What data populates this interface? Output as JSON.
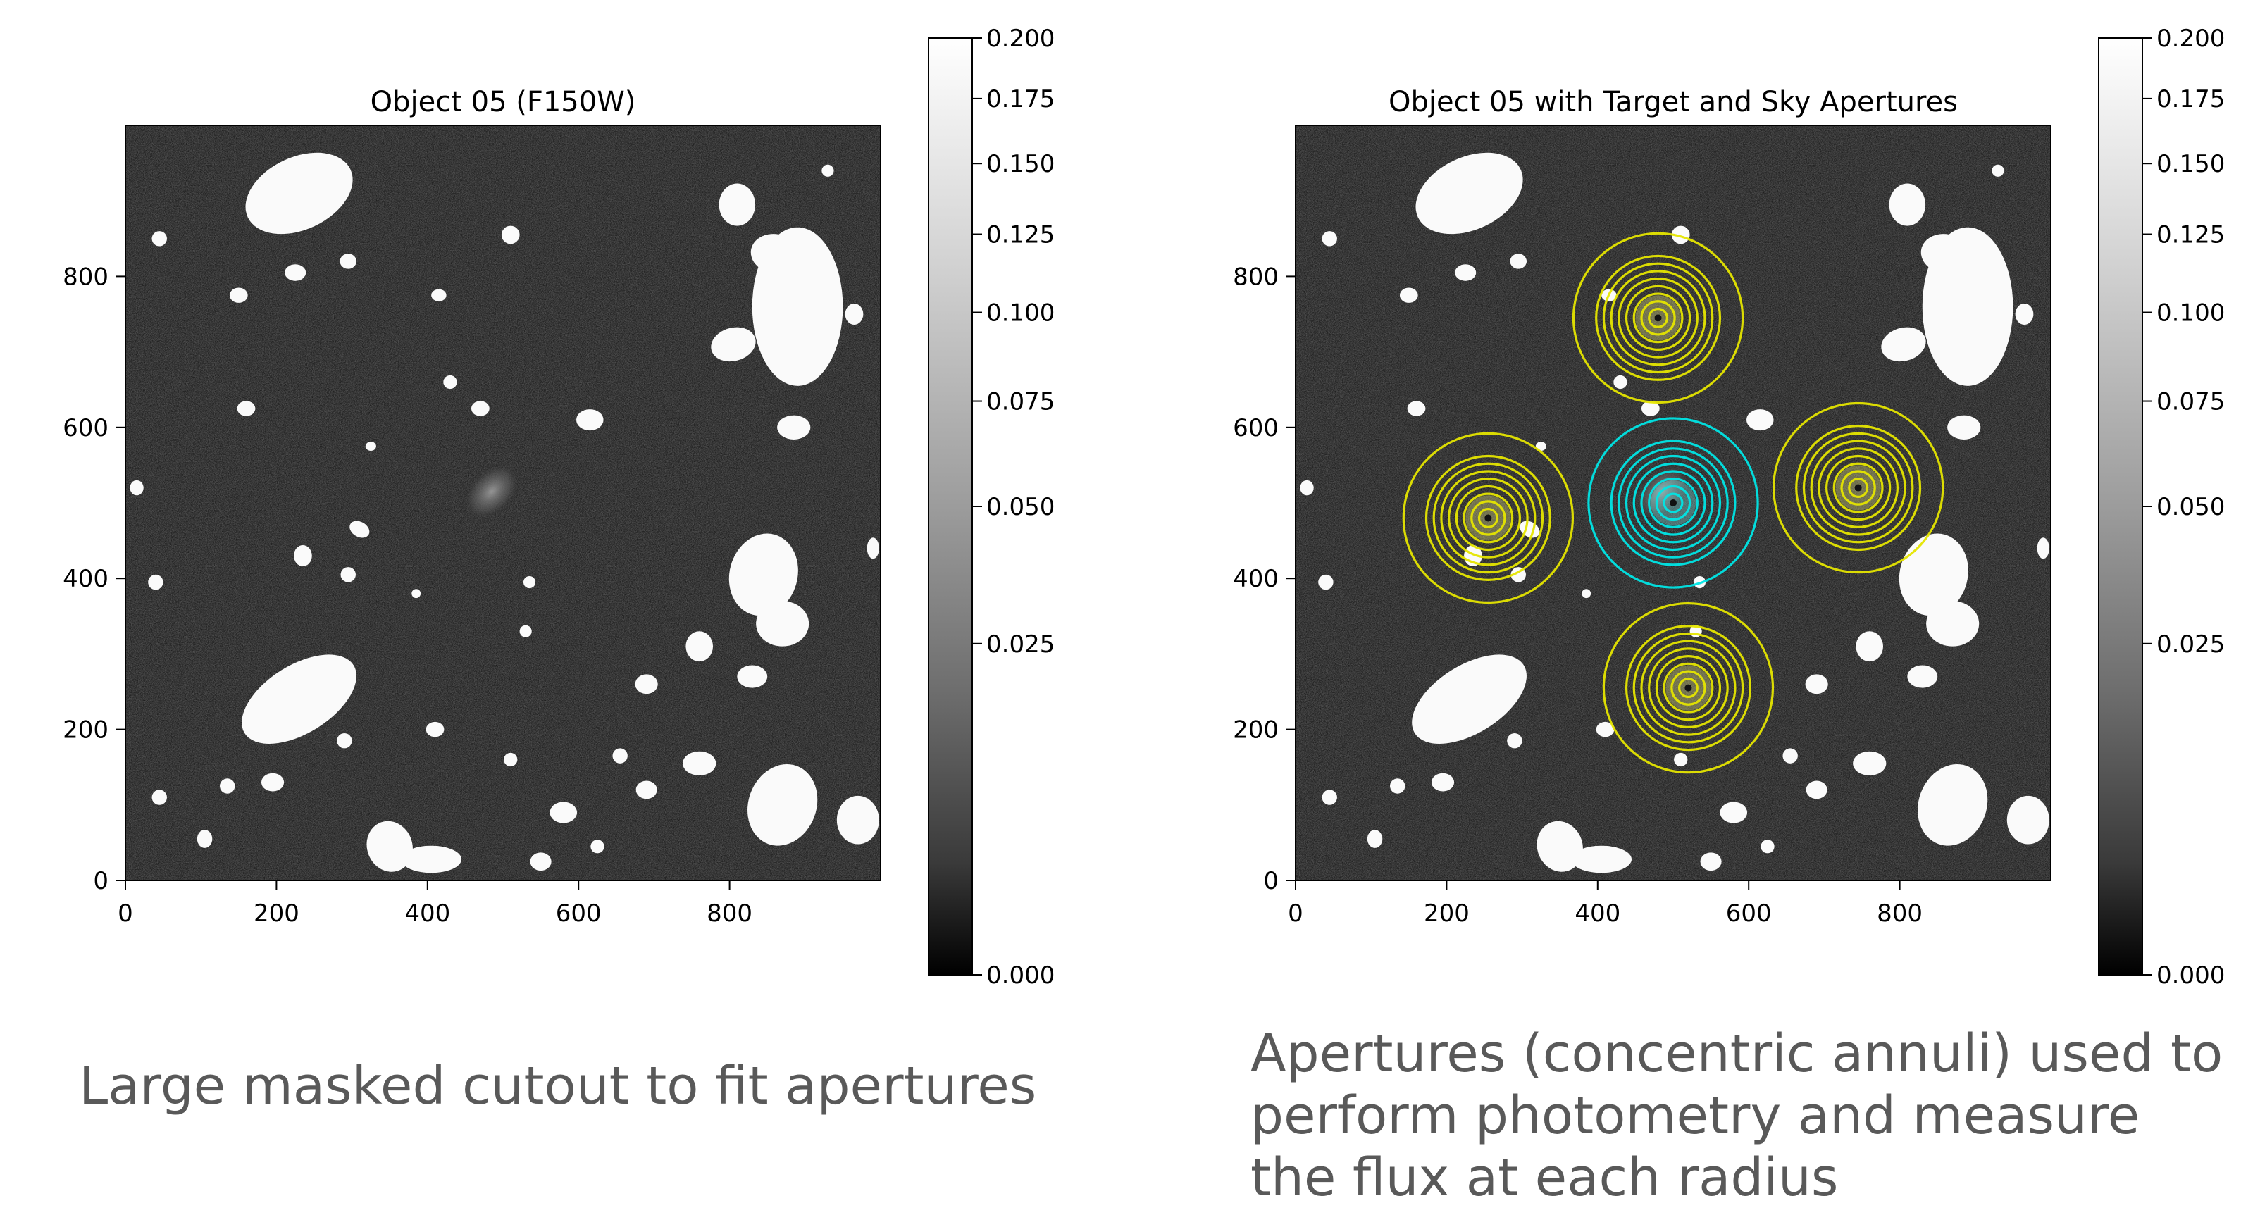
{
  "chart_data": [
    {
      "type": "heatmap",
      "title": "Object 05 (F150W)",
      "xlabel": "",
      "ylabel": "",
      "xlim": [
        0,
        1000
      ],
      "ylim": [
        0,
        1000
      ],
      "x_ticks": [
        0,
        200,
        400,
        600,
        800
      ],
      "y_ticks": [
        0,
        200,
        400,
        600,
        800
      ],
      "colormap": "gray",
      "colorbar": {
        "range": [
          0.0,
          0.2
        ],
        "scale": "sqrt",
        "ticks": [
          "0.000",
          "0.025",
          "0.050",
          "0.075",
          "0.100",
          "0.125",
          "0.150",
          "0.175",
          "0.200"
        ]
      },
      "target": {
        "x": 500,
        "y": 500
      },
      "apertures": []
    },
    {
      "type": "heatmap",
      "title": "Object 05 with Target and Sky Apertures",
      "xlabel": "",
      "ylabel": "",
      "xlim": [
        0,
        1000
      ],
      "ylim": [
        0,
        1000
      ],
      "x_ticks": [
        0,
        200,
        400,
        600,
        800
      ],
      "y_ticks": [
        0,
        200,
        400,
        600,
        800
      ],
      "colormap": "gray",
      "colorbar": {
        "range": [
          0.0,
          0.2
        ],
        "scale": "sqrt",
        "ticks": [
          "0.000",
          "0.025",
          "0.050",
          "0.075",
          "0.100",
          "0.125",
          "0.150",
          "0.175",
          "0.200"
        ]
      },
      "target": {
        "x": 500,
        "y": 500
      },
      "apertures": [
        {
          "role": "target",
          "color": "#00e5e5",
          "x": 500,
          "y": 500,
          "radii": [
            12,
            22,
            32,
            42,
            52,
            62,
            72,
            82,
            112
          ]
        },
        {
          "role": "sky",
          "color": "#e5e500",
          "x": 480,
          "y": 745,
          "radii": [
            12,
            22,
            32,
            42,
            52,
            62,
            72,
            82,
            112
          ]
        },
        {
          "role": "sky",
          "color": "#e5e500",
          "x": 255,
          "y": 480,
          "radii": [
            12,
            22,
            32,
            42,
            52,
            62,
            72,
            82,
            112
          ]
        },
        {
          "role": "sky",
          "color": "#e5e500",
          "x": 745,
          "y": 520,
          "radii": [
            12,
            22,
            32,
            42,
            52,
            62,
            72,
            82,
            112
          ]
        },
        {
          "role": "sky",
          "color": "#e5e500",
          "x": 520,
          "y": 255,
          "radii": [
            12,
            22,
            32,
            42,
            52,
            62,
            72,
            82,
            112
          ]
        }
      ]
    }
  ],
  "captions": {
    "left": "Large masked cutout to fit apertures",
    "right": "Apertures (concentric annuli) used to perform photometry and measure the flux at each radius"
  }
}
